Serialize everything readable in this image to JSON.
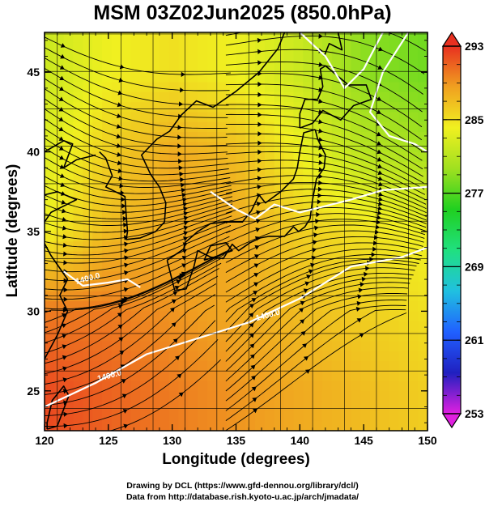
{
  "title": "MSM 03Z02Jun2025 (850.0hPa)",
  "xlabel": "Longitude (degrees)",
  "ylabel": "Latitude  (degrees)",
  "credit_line1": "Drawing by DCL (https://www.gfd-dennou.org/library/dcl/)",
  "credit_line2": "Data from http://database.rish.kyoto-u.ac.jp/arch/jmadata/",
  "contour_labels": [
    "1400.0",
    "1400.0",
    "1400.0"
  ],
  "colors": {
    "warm": "#e83020",
    "mid": "#f0a020",
    "green": "#20d020",
    "coast": "#000000",
    "contour": "#ffffff"
  },
  "map": {
    "lon_range": [
      120,
      150
    ],
    "lat_range": [
      22.5,
      47.5
    ],
    "x_ticks": [
      120,
      125,
      130,
      135,
      140,
      145,
      150
    ],
    "y_ticks": [
      25,
      30,
      35,
      40,
      45
    ],
    "grid_lines": true
  },
  "colorbar": {
    "min": 253,
    "max": 293,
    "tick_labels": [
      "293",
      "285",
      "277",
      "269",
      "261",
      "253"
    ],
    "tick_values": [
      293,
      285,
      277,
      269,
      261,
      253
    ],
    "stops": [
      "#e020e0",
      "#2020c0",
      "#2060ff",
      "#20c0e0",
      "#20e080",
      "#20d020",
      "#a0e020",
      "#f0f020",
      "#f0a020",
      "#e83020"
    ]
  },
  "chart_data": {
    "type": "heatmap",
    "title": "MSM 03Z02Jun2025 (850.0hPa)",
    "xlabel": "Longitude (degrees)",
    "ylabel": "Latitude  (degrees)",
    "xlim": [
      120,
      150
    ],
    "ylim": [
      22.5,
      47.5
    ],
    "x_ticks": [
      120,
      125,
      130,
      135,
      140,
      145,
      150
    ],
    "y_ticks": [
      25,
      30,
      35,
      40,
      45
    ],
    "colorbar_range": [
      253,
      293
    ],
    "colorbar_ticks": [
      293,
      285,
      277,
      269,
      261,
      253
    ],
    "temperature_field_approx": {
      "lon": [
        120,
        125,
        130,
        135,
        140,
        145,
        150
      ],
      "lat": [
        25,
        30,
        35,
        40,
        45
      ],
      "values": [
        [
          292,
          291,
          290,
          289,
          288,
          287,
          286
        ],
        [
          290,
          290,
          289,
          288,
          287,
          286,
          285
        ],
        [
          284,
          287,
          288,
          288,
          286,
          285,
          284
        ],
        [
          283,
          286,
          288,
          287,
          284,
          281,
          280
        ],
        [
          282,
          284,
          285,
          284,
          282,
          279,
          278
        ]
      ]
    }
  }
}
